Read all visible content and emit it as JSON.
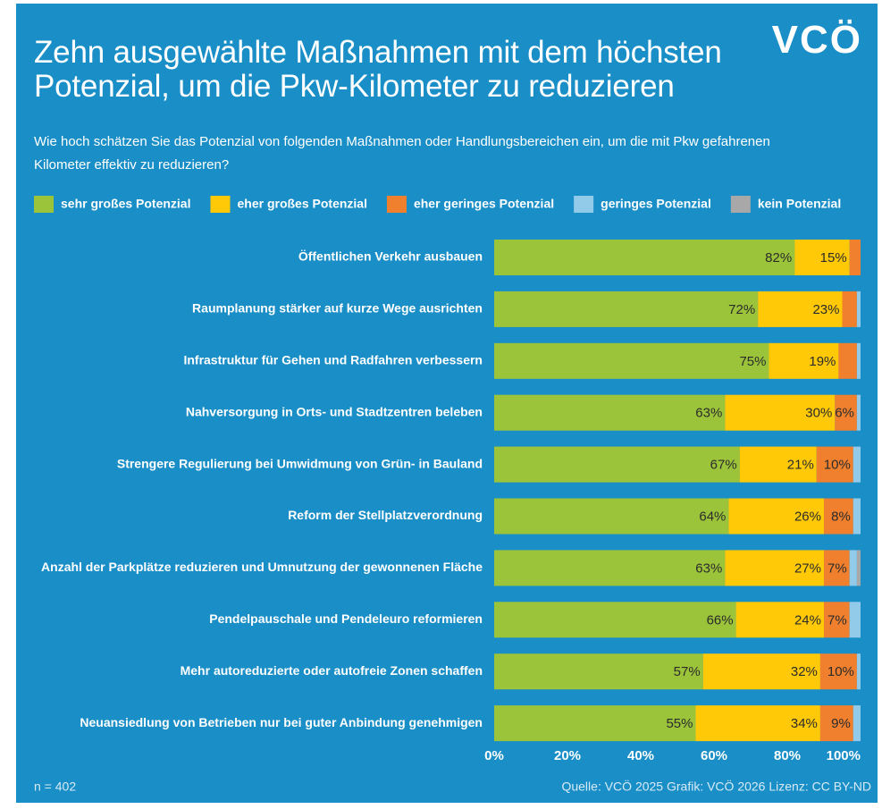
{
  "chart_data": {
    "type": "stacked_barh",
    "title": "Zehn ausgewählte Maßnahmen mit dem höchsten\nPotenzial, um die Pkw-Kilometer zu reduzieren",
    "subtitle": "Wie hoch schätzen Sie das Potenzial von folgenden Maßnahmen oder Handlungsbereichen ein, um die mit Pkw gefahrenen Kilometer effektiv zu reduzieren?",
    "logo": "VCÖ",
    "categories": [
      "Öffentlichen Verkehr ausbauen",
      "Raumplanung stärker auf kurze Wege ausrichten",
      "Infrastruktur für Gehen und Radfahren verbessern",
      "Nahversorgung in Orts- und Stadtzentren beleben",
      "Strengere Regulierung bei Umwidmung von Grün- in Bauland",
      "Reform der Stellplatzverordnung",
      "Anzahl der Parkplätze reduzieren und Umnutzung der gewonnenen Fläche",
      "Pendelpauschale und Pendeleuro reformieren",
      "Mehr autoreduzierte oder autofreie Zonen schaffen",
      "Neuansiedlung von Betrieben nur bei guter Anbindung genehmigen"
    ],
    "series": [
      {
        "name": "sehr großes Potenzial",
        "color": "#9cc43a",
        "values": [
          82,
          72,
          75,
          63,
          67,
          64,
          63,
          66,
          57,
          55
        ],
        "value_labels": [
          "82%",
          "72%",
          "75%",
          "63%",
          "67%",
          "64%",
          "63%",
          "66%",
          "57%",
          "55%"
        ]
      },
      {
        "name": "eher großes Potenzial",
        "color": "#ffc907",
        "values": [
          15,
          23,
          19,
          30,
          21,
          26,
          27,
          24,
          32,
          34
        ],
        "value_labels": [
          "15%",
          "23%",
          "19%",
          "30%",
          "21%",
          "26%",
          "27%",
          "24%",
          "32%",
          "34%"
        ]
      },
      {
        "name": "eher geringes Potenzial",
        "color": "#f0802e",
        "values": [
          3,
          4,
          5,
          6,
          10,
          8,
          7,
          7,
          10,
          9
        ],
        "value_labels": [
          null,
          null,
          null,
          "6%",
          "10%",
          "8%",
          "7%",
          "7%",
          "10%",
          "9%"
        ]
      },
      {
        "name": "geringes Potenzial",
        "color": "#92cbe9",
        "values": [
          0,
          1,
          1,
          1,
          2,
          2,
          2,
          3,
          1,
          2
        ]
      },
      {
        "name": "kein Potenzial",
        "color": "#a8a8a8",
        "values": [
          0,
          0,
          0,
          0,
          0,
          0,
          1,
          0,
          0,
          0
        ]
      }
    ],
    "xlim": [
      0,
      100
    ],
    "xticks": [
      {
        "value": 0,
        "label": "0%"
      },
      {
        "value": 20,
        "label": "20%"
      },
      {
        "value": 40,
        "label": "40%"
      },
      {
        "value": 60,
        "label": "60%"
      },
      {
        "value": 80,
        "label": "80%"
      },
      {
        "value": 100,
        "label": "100%"
      }
    ],
    "note": "n = 402",
    "source": "Quelle: VCÖ 2025 Grafik: VCÖ 2026 Lizenz: CC BY-ND"
  }
}
